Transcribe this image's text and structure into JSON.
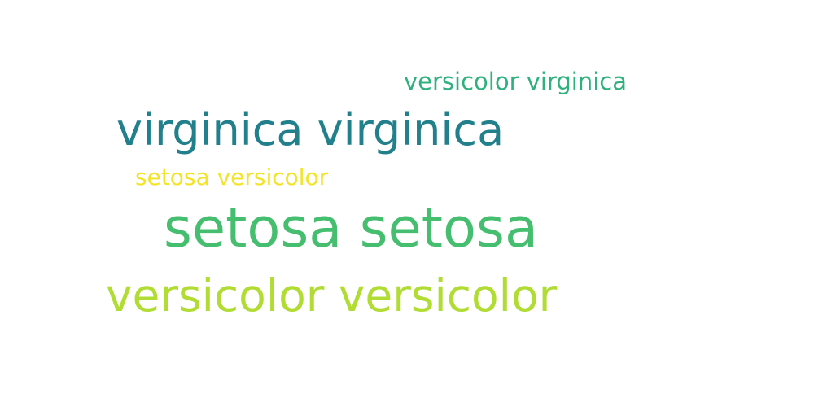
{
  "words": [
    {
      "text": "versicolor virginica",
      "color": "#2fb17e"
    },
    {
      "text": "virginica virginica",
      "color": "#22808c"
    },
    {
      "text": "setosa versicolor",
      "color": "#f2e428"
    },
    {
      "text": "setosa setosa",
      "color": "#45bf6f"
    },
    {
      "text": "versicolor versicolor",
      "color": "#b1dc33"
    }
  ]
}
